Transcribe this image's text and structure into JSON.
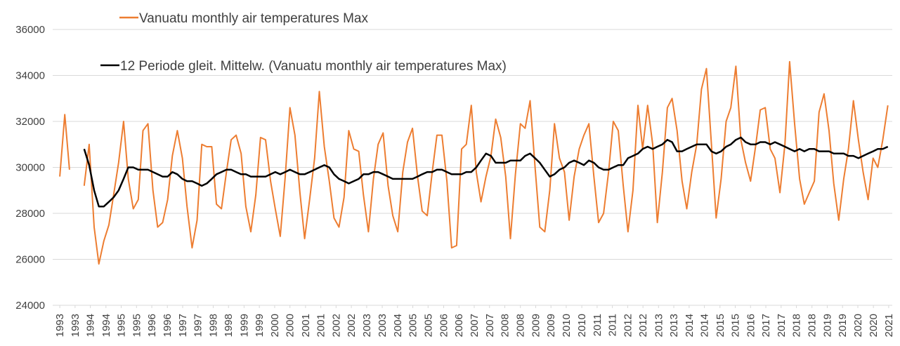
{
  "chart_data": {
    "type": "line",
    "x": [
      1993,
      1993.17,
      1993.33,
      1993.5,
      1993.67,
      1993.83,
      1994,
      1994.17,
      1994.33,
      1994.5,
      1994.67,
      1994.83,
      1995,
      1995.17,
      1995.33,
      1995.5,
      1995.67,
      1995.83,
      1996,
      1996.17,
      1996.33,
      1996.5,
      1996.67,
      1996.83,
      1997,
      1997.17,
      1997.33,
      1997.5,
      1997.67,
      1997.83,
      1998,
      1998.17,
      1998.33,
      1998.5,
      1998.67,
      1998.83,
      1999,
      1999.17,
      1999.33,
      1999.5,
      1999.67,
      1999.83,
      2000,
      2000.17,
      2000.33,
      2000.5,
      2000.67,
      2000.83,
      2001,
      2001.17,
      2001.33,
      2001.5,
      2001.67,
      2001.83,
      2002,
      2002.17,
      2002.33,
      2002.5,
      2002.67,
      2002.83,
      2003,
      2003.17,
      2003.33,
      2003.5,
      2003.67,
      2003.83,
      2004,
      2004.17,
      2004.33,
      2004.5,
      2004.67,
      2004.83,
      2005,
      2005.17,
      2005.33,
      2005.5,
      2005.67,
      2005.83,
      2006,
      2006.17,
      2006.33,
      2006.5,
      2006.67,
      2006.83,
      2007,
      2007.17,
      2007.33,
      2007.5,
      2007.67,
      2007.83,
      2008,
      2008.17,
      2008.33,
      2008.5,
      2008.67,
      2008.83,
      2009,
      2009.17,
      2009.33,
      2009.5,
      2009.67,
      2009.83,
      2010,
      2010.17,
      2010.33,
      2010.5,
      2010.67,
      2010.83,
      2011,
      2011.17,
      2011.33,
      2011.5,
      2011.67,
      2011.83,
      2012,
      2012.17,
      2012.33,
      2012.5,
      2012.67,
      2012.83,
      2013,
      2013.17,
      2013.33,
      2013.5,
      2013.67,
      2013.83,
      2014,
      2014.17,
      2014.33,
      2014.5,
      2014.67,
      2014.83,
      2015,
      2015.17,
      2015.33,
      2015.5,
      2015.67,
      2015.83,
      2016,
      2016.17,
      2016.33,
      2016.5,
      2016.67,
      2016.83,
      2017,
      2017.17,
      2017.33,
      2017.5,
      2017.67,
      2017.83,
      2018,
      2018.17,
      2018.33,
      2018.5,
      2018.67,
      2018.83,
      2019,
      2019.17,
      2019.33,
      2019.5,
      2019.67,
      2019.83,
      2020,
      2020.17,
      2020.33,
      2020.5,
      2020.67,
      2020.83,
      2021,
      2021.17
    ],
    "series": [
      {
        "name": "Vanuatu monthly air temperatures Max",
        "color": "#ed7d31",
        "values": [
          29600,
          32300,
          29900,
          null,
          null,
          29200,
          31000,
          27400,
          25800,
          26800,
          27500,
          28800,
          30200,
          32000,
          29500,
          28200,
          28600,
          31600,
          31900,
          29000,
          27400,
          27600,
          28600,
          30500,
          31600,
          30400,
          28300,
          26500,
          27700,
          31000,
          30900,
          30900,
          28400,
          28200,
          29800,
          31200,
          31400,
          30600,
          28300,
          27200,
          28800,
          31300,
          31200,
          29400,
          28200,
          27000,
          29600,
          32600,
          31400,
          28900,
          26900,
          28600,
          30400,
          33300,
          30900,
          29400,
          27800,
          27400,
          28700,
          31600,
          30800,
          30700,
          28800,
          27200,
          29500,
          31000,
          31500,
          29200,
          27900,
          27200,
          29800,
          31100,
          31700,
          29600,
          28100,
          27900,
          29800,
          31400,
          31400,
          29400,
          26500,
          26600,
          30800,
          31000,
          32700,
          29800,
          28500,
          29600,
          30500,
          32100,
          31300,
          29600,
          26900,
          29700,
          31900,
          31700,
          32900,
          30000,
          27400,
          27200,
          29000,
          31900,
          30400,
          29800,
          27700,
          29600,
          30800,
          31400,
          31900,
          29600,
          27600,
          28000,
          29800,
          32000,
          31600,
          29200,
          27200,
          29000,
          32700,
          30800,
          32700,
          31000,
          27600,
          29800,
          32600,
          33000,
          31600,
          29400,
          28200,
          29800,
          31000,
          33400,
          34300,
          31000,
          27800,
          29500,
          32000,
          32600,
          34400,
          31200,
          30200,
          29400,
          30900,
          32500,
          32600,
          30800,
          30400,
          28900,
          31000,
          34600,
          31900,
          29500,
          28400,
          28900,
          29400,
          32400,
          33200,
          31600,
          29300,
          27700,
          29500,
          30800,
          32900,
          31200,
          29800,
          28600,
          30400,
          30000,
          31200,
          32700
        ]
      },
      {
        "name": "12 Periode gleit. Mittelw. (Vanuatu monthly air temperatures Max)",
        "color": "#000000",
        "values": [
          null,
          null,
          null,
          null,
          null,
          30800,
          30100,
          29000,
          28300,
          28300,
          28500,
          28700,
          29000,
          29500,
          30000,
          30000,
          29900,
          29900,
          29900,
          29800,
          29700,
          29600,
          29600,
          29800,
          29700,
          29500,
          29400,
          29400,
          29300,
          29200,
          29300,
          29500,
          29700,
          29800,
          29900,
          29900,
          29800,
          29700,
          29700,
          29600,
          29600,
          29600,
          29600,
          29700,
          29800,
          29700,
          29800,
          29900,
          29800,
          29700,
          29700,
          29800,
          29900,
          30000,
          30100,
          30000,
          29700,
          29500,
          29400,
          29300,
          29400,
          29500,
          29700,
          29700,
          29800,
          29800,
          29700,
          29600,
          29500,
          29500,
          29500,
          29500,
          29500,
          29600,
          29700,
          29800,
          29800,
          29900,
          29900,
          29800,
          29700,
          29700,
          29700,
          29800,
          29800,
          30000,
          30300,
          30600,
          30500,
          30200,
          30200,
          30200,
          30300,
          30300,
          30300,
          30500,
          30600,
          30400,
          30200,
          29900,
          29600,
          29700,
          29900,
          30000,
          30200,
          30300,
          30200,
          30100,
          30300,
          30200,
          30000,
          29900,
          29900,
          30000,
          30100,
          30100,
          30400,
          30500,
          30600,
          30800,
          30900,
          30800,
          30900,
          31000,
          31200,
          31100,
          30700,
          30700,
          30800,
          30900,
          31000,
          31000,
          31000,
          30700,
          30600,
          30700,
          30900,
          31000,
          31200,
          31300,
          31100,
          31000,
          31000,
          31100,
          31100,
          31000,
          31100,
          31000,
          30900,
          30800,
          30700,
          30800,
          30700,
          30800,
          30800,
          30700,
          30700,
          30700,
          30600,
          30600,
          30600,
          30500,
          30500,
          30400,
          30500,
          30600,
          30700,
          30800,
          30800,
          30900
        ]
      }
    ],
    "xlim": [
      1992.95,
      2021.25
    ],
    "xticks": [
      {
        "value": 1993.0,
        "label": "1993"
      },
      {
        "value": 1993.52,
        "label": "1993"
      },
      {
        "value": 1994.04,
        "label": "1994"
      },
      {
        "value": 1994.57,
        "label": "1994"
      },
      {
        "value": 1995.09,
        "label": "1995"
      },
      {
        "value": 1995.61,
        "label": "1995"
      },
      {
        "value": 1996.13,
        "label": "1996"
      },
      {
        "value": 1996.66,
        "label": "1996"
      },
      {
        "value": 1997.18,
        "label": "1997"
      },
      {
        "value": 1997.7,
        "label": "1997"
      },
      {
        "value": 1998.22,
        "label": "1998"
      },
      {
        "value": 1998.74,
        "label": "1998"
      },
      {
        "value": 1999.27,
        "label": "1999"
      },
      {
        "value": 1999.79,
        "label": "1999"
      },
      {
        "value": 2000.31,
        "label": "2000"
      },
      {
        "value": 2000.83,
        "label": "2000"
      },
      {
        "value": 2001.36,
        "label": "2001"
      },
      {
        "value": 2001.88,
        "label": "2001"
      },
      {
        "value": 2002.4,
        "label": "2002"
      },
      {
        "value": 2002.92,
        "label": "2002"
      },
      {
        "value": 2003.44,
        "label": "2003"
      },
      {
        "value": 2003.97,
        "label": "2003"
      },
      {
        "value": 2004.49,
        "label": "2004"
      },
      {
        "value": 2005.01,
        "label": "2005"
      },
      {
        "value": 2005.53,
        "label": "2005"
      },
      {
        "value": 2006.06,
        "label": "2006"
      },
      {
        "value": 2006.58,
        "label": "2006"
      },
      {
        "value": 2007.1,
        "label": "2007"
      },
      {
        "value": 2007.62,
        "label": "2007"
      },
      {
        "value": 2008.14,
        "label": "2008"
      },
      {
        "value": 2008.67,
        "label": "2008"
      },
      {
        "value": 2009.19,
        "label": "2009"
      },
      {
        "value": 2009.71,
        "label": "2009"
      },
      {
        "value": 2010.23,
        "label": "2010"
      },
      {
        "value": 2010.76,
        "label": "2010"
      },
      {
        "value": 2011.28,
        "label": "2011"
      },
      {
        "value": 2011.8,
        "label": "2011"
      },
      {
        "value": 2012.32,
        "label": "2012"
      },
      {
        "value": 2012.84,
        "label": "2012"
      },
      {
        "value": 2013.37,
        "label": "2013"
      },
      {
        "value": 2013.89,
        "label": "2013"
      },
      {
        "value": 2014.41,
        "label": "2014"
      },
      {
        "value": 2014.93,
        "label": "2014"
      },
      {
        "value": 2015.46,
        "label": "2015"
      },
      {
        "value": 2015.98,
        "label": "2015"
      },
      {
        "value": 2016.5,
        "label": "2016"
      },
      {
        "value": 2017.02,
        "label": "2017"
      },
      {
        "value": 2017.54,
        "label": "2017"
      },
      {
        "value": 2018.06,
        "label": "2018"
      },
      {
        "value": 2018.59,
        "label": "2018"
      },
      {
        "value": 2019.11,
        "label": "2019"
      },
      {
        "value": 2019.63,
        "label": "2019"
      },
      {
        "value": 2020.15,
        "label": "2020"
      },
      {
        "value": 2020.68,
        "label": "2020"
      },
      {
        "value": 2021.2,
        "label": "2021"
      }
    ],
    "ylim": [
      24000,
      36000
    ],
    "yticks": [
      24000,
      26000,
      28000,
      30000,
      32000,
      34000,
      36000
    ],
    "grid": true
  }
}
